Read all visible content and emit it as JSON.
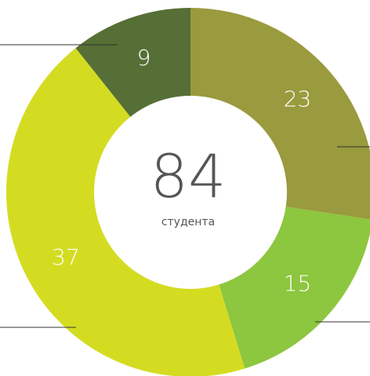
{
  "chart_data": {
    "type": "donut",
    "categories": [
      null,
      null,
      null,
      null
    ],
    "values": [
      23,
      15,
      37,
      9
    ],
    "colors": [
      "#9a9a3e",
      "#8dc63f",
      "#d4dc22",
      "#566f36"
    ],
    "center_value": "84",
    "center_label": "студента"
  }
}
